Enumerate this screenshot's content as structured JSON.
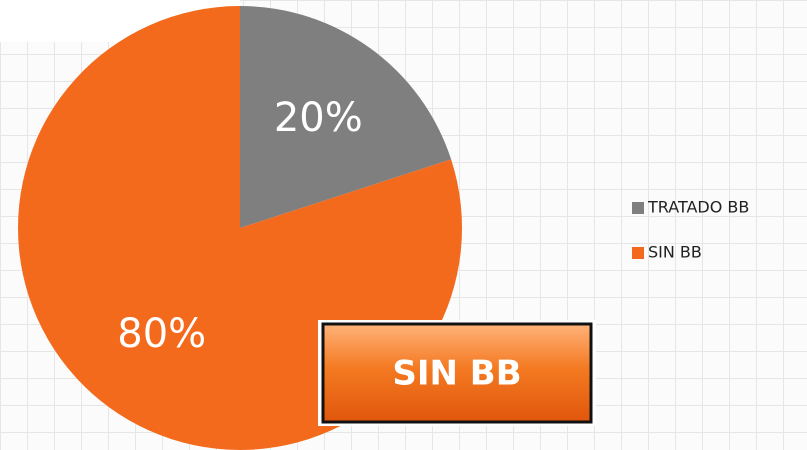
{
  "chart_data": {
    "type": "pie",
    "categories": [
      "TRATADO BB",
      "SIN BB"
    ],
    "values": [
      20,
      80
    ],
    "value_labels": [
      "20%",
      "80%"
    ],
    "colors": [
      "#7f7f80",
      "#f46a1d"
    ],
    "legend": "right",
    "annotation": "SIN BB"
  }
}
